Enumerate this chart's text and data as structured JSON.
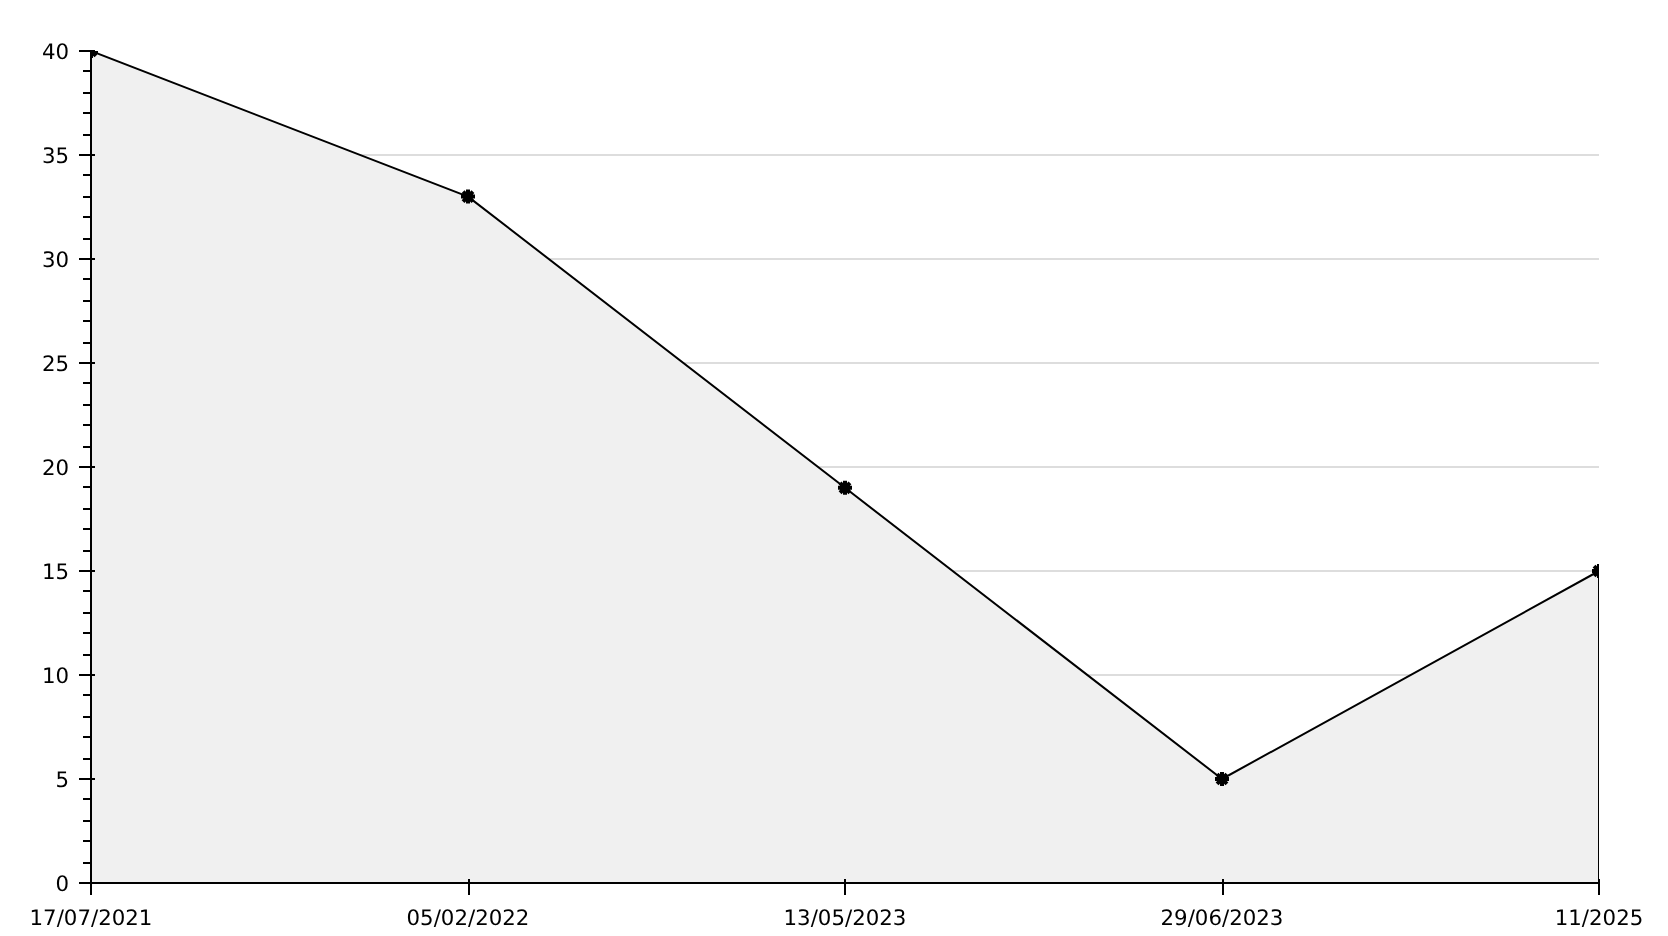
{
  "chart_data": {
    "type": "area",
    "categories": [
      "17/07/2021",
      "05/02/2022",
      "13/05/2023",
      "29/06/2023",
      "11/2025"
    ],
    "series": [
      {
        "color": "#000000",
        "values": [
          40,
          33,
          19,
          5,
          15
        ]
      }
    ],
    "ylim": [
      0,
      40
    ],
    "yticks": [
      0,
      5,
      10,
      15,
      20,
      25,
      30,
      35,
      40
    ],
    "grid": "y",
    "marker": "cross",
    "line_style": "solid"
  }
}
